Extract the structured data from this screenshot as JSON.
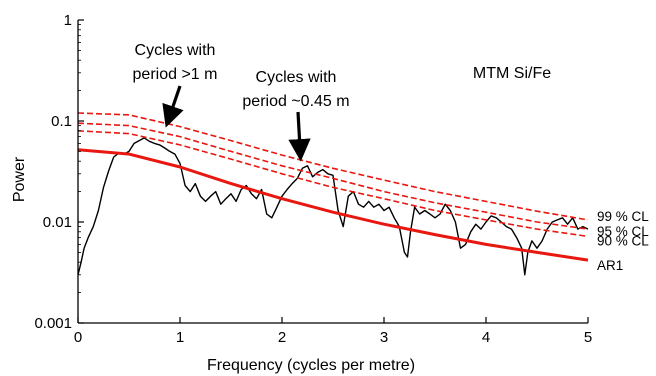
{
  "chart_data": {
    "type": "line",
    "title": "MTM Si/Fe",
    "xlabel": "Frequency (cycles per metre)",
    "ylabel": "Power",
    "y_scale": "log",
    "xlim": [
      0,
      5
    ],
    "ylim": [
      0.001,
      1
    ],
    "x_ticks": [
      0,
      1,
      2,
      3,
      4,
      5
    ],
    "x_tick_labels": [
      "0",
      "1",
      "2",
      "3",
      "4",
      "5"
    ],
    "y_ticks": [
      0.001,
      0.01,
      0.1,
      1
    ],
    "y_tick_labels": [
      "0.001",
      "0.01",
      "0.1",
      "1"
    ],
    "grid": false,
    "legend_placement": "right edge, at line ends",
    "series": [
      {
        "name": "",
        "color": "#000000",
        "style": "solid",
        "x": [
          0.0,
          0.03,
          0.06,
          0.1,
          0.15,
          0.2,
          0.25,
          0.3,
          0.35,
          0.4,
          0.45,
          0.5,
          0.55,
          0.6,
          0.65,
          0.7,
          0.75,
          0.8,
          0.85,
          0.9,
          0.95,
          1.0,
          1.05,
          1.1,
          1.15,
          1.2,
          1.25,
          1.3,
          1.35,
          1.4,
          1.45,
          1.5,
          1.55,
          1.6,
          1.65,
          1.7,
          1.75,
          1.8,
          1.85,
          1.9,
          1.95,
          2.0,
          2.05,
          2.1,
          2.15,
          2.2,
          2.25,
          2.3,
          2.35,
          2.4,
          2.45,
          2.5,
          2.55,
          2.6,
          2.65,
          2.7,
          2.75,
          2.8,
          2.85,
          2.9,
          2.95,
          3.0,
          3.05,
          3.1,
          3.15,
          3.2,
          3.23,
          3.26,
          3.3,
          3.35,
          3.4,
          3.45,
          3.5,
          3.55,
          3.6,
          3.65,
          3.7,
          3.75,
          3.8,
          3.85,
          3.9,
          3.95,
          4.0,
          4.05,
          4.1,
          4.15,
          4.2,
          4.25,
          4.3,
          4.35,
          4.38,
          4.41,
          4.45,
          4.5,
          4.55,
          4.6,
          4.65,
          4.7,
          4.75,
          4.8,
          4.85,
          4.9,
          4.95,
          5.0
        ],
        "values": [
          0.003,
          0.004,
          0.0055,
          0.007,
          0.009,
          0.013,
          0.022,
          0.032,
          0.044,
          0.048,
          0.047,
          0.05,
          0.06,
          0.064,
          0.068,
          0.063,
          0.06,
          0.058,
          0.054,
          0.05,
          0.047,
          0.038,
          0.023,
          0.02,
          0.024,
          0.018,
          0.016,
          0.018,
          0.02,
          0.015,
          0.017,
          0.019,
          0.016,
          0.021,
          0.023,
          0.019,
          0.017,
          0.021,
          0.012,
          0.011,
          0.014,
          0.018,
          0.021,
          0.024,
          0.027,
          0.034,
          0.036,
          0.028,
          0.031,
          0.033,
          0.03,
          0.029,
          0.013,
          0.009,
          0.018,
          0.02,
          0.015,
          0.014,
          0.016,
          0.014,
          0.015,
          0.013,
          0.014,
          0.011,
          0.009,
          0.005,
          0.0045,
          0.008,
          0.014,
          0.012,
          0.013,
          0.012,
          0.011,
          0.012,
          0.015,
          0.013,
          0.01,
          0.0055,
          0.006,
          0.008,
          0.0095,
          0.0085,
          0.01,
          0.0115,
          0.011,
          0.01,
          0.009,
          0.0085,
          0.007,
          0.0055,
          0.003,
          0.005,
          0.0065,
          0.0055,
          0.0065,
          0.0085,
          0.01,
          0.0105,
          0.011,
          0.0095,
          0.011,
          0.0085,
          0.009,
          0.0085
        ]
      },
      {
        "name": "AR1",
        "color": "#e8170f",
        "style": "solid",
        "x": [
          0,
          0.5,
          1,
          1.5,
          2,
          2.5,
          3,
          3.5,
          4,
          4.5,
          5
        ],
        "values": [
          0.052,
          0.047,
          0.035,
          0.024,
          0.017,
          0.0125,
          0.0095,
          0.0075,
          0.006,
          0.005,
          0.0042
        ]
      },
      {
        "name": "90 % CL",
        "color": "#e8170f",
        "style": "dashed",
        "x": [
          0,
          0.5,
          1,
          1.5,
          2,
          2.5,
          3,
          3.5,
          4,
          4.5,
          5
        ],
        "values": [
          0.08,
          0.075,
          0.058,
          0.042,
          0.03,
          0.022,
          0.017,
          0.013,
          0.0105,
          0.0085,
          0.0072
        ]
      },
      {
        "name": "95 % CL",
        "color": "#e8170f",
        "style": "dashed",
        "x": [
          0,
          0.5,
          1,
          1.5,
          2,
          2.5,
          3,
          3.5,
          4,
          4.5,
          5
        ],
        "values": [
          0.095,
          0.09,
          0.07,
          0.05,
          0.036,
          0.027,
          0.02,
          0.0155,
          0.0125,
          0.01,
          0.0085
        ]
      },
      {
        "name": "99 % CL",
        "color": "#e8170f",
        "style": "dashed",
        "x": [
          0,
          0.5,
          1,
          1.5,
          2,
          2.5,
          3,
          3.5,
          4,
          4.5,
          5
        ],
        "values": [
          0.12,
          0.115,
          0.088,
          0.064,
          0.046,
          0.034,
          0.026,
          0.02,
          0.016,
          0.0128,
          0.0105
        ]
      }
    ],
    "annotations": [
      {
        "lines": [
          "Cycles with",
          "period >1 m"
        ],
        "arrow_to": [
          0.9,
          0.075
        ]
      },
      {
        "lines": [
          "Cycles with",
          "period ~0.45 m"
        ],
        "arrow_to": [
          2.2,
          0.035
        ]
      }
    ]
  }
}
